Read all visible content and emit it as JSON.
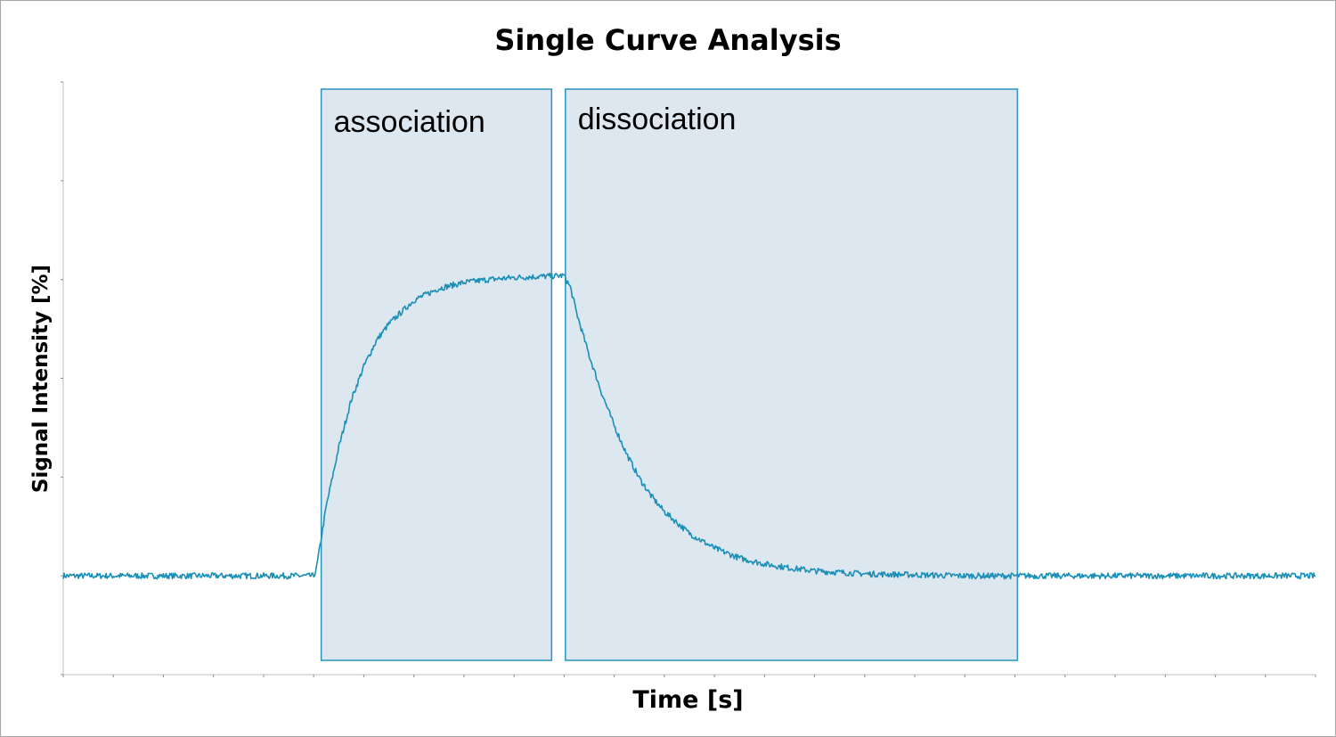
{
  "chart_data": {
    "type": "line",
    "title": "Single Curve Analysis",
    "xlabel": "Time [s]",
    "ylabel": "Signal Intensity [%]",
    "xlim": [
      0,
      100
    ],
    "ylim": [
      0,
      6
    ],
    "grid": false,
    "show_tick_labels": false,
    "line_color": "#1a8fb8",
    "region_fill": "#dce7ef",
    "region_stroke": "#2a93bd",
    "regions": [
      {
        "label": "association",
        "x_start": 20.6,
        "x_end": 39.0
      },
      {
        "label": "dissociation",
        "x_start": 40.1,
        "x_end": 76.2
      }
    ],
    "series": [
      {
        "x": [
          0,
          10,
          20,
          20.2,
          21,
          22,
          23,
          24,
          25,
          26,
          28,
          30,
          32,
          34,
          36,
          38,
          40,
          40.5,
          41,
          42,
          43,
          44,
          45,
          46,
          47,
          48,
          50,
          52,
          54,
          56,
          58,
          60,
          64,
          68,
          72,
          76,
          80,
          90,
          100
        ],
        "values": [
          1.0,
          1.0,
          1.0,
          1.06,
          1.7,
          2.3,
          2.78,
          3.12,
          3.38,
          3.55,
          3.79,
          3.91,
          3.97,
          4.0,
          4.02,
          4.03,
          4.04,
          3.92,
          3.66,
          3.23,
          2.85,
          2.52,
          2.23,
          1.99,
          1.8,
          1.65,
          1.43,
          1.28,
          1.18,
          1.12,
          1.08,
          1.05,
          1.02,
          1.01,
          1.0,
          1.0,
          1.0,
          1.0,
          1.0
        ]
      }
    ]
  }
}
